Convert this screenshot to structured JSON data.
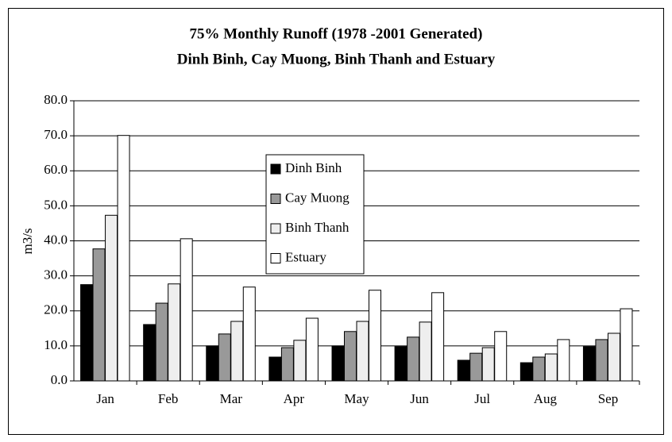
{
  "chart_data": {
    "type": "bar",
    "title": "75% Monthly Runoff (1978 -2001 Generated)",
    "subtitle": "Dinh Binh, Cay Muong, Binh Thanh and Estuary",
    "y_label": "m3/s",
    "categories": [
      "Jan",
      "Feb",
      "Mar",
      "Apr",
      "May",
      "Jun",
      "Jul",
      "Aug",
      "Sep"
    ],
    "series": [
      {
        "name": "Dinh Binh",
        "color": "#000000",
        "values": [
          27.5,
          16.1,
          10.0,
          6.8,
          10.0,
          9.8,
          5.9,
          5.2,
          9.8
        ]
      },
      {
        "name": "Cay Muong",
        "color": "#999999",
        "values": [
          37.7,
          22.2,
          13.4,
          9.5,
          14.1,
          12.5,
          7.9,
          6.8,
          11.8
        ]
      },
      {
        "name": "Binh Thanh",
        "color": "#eeeeee",
        "values": [
          47.3,
          27.7,
          17.0,
          11.6,
          17.0,
          16.8,
          9.5,
          7.7,
          13.6
        ]
      },
      {
        "name": "Estuary",
        "color": "#ffffff",
        "values": [
          70.1,
          40.6,
          26.8,
          17.9,
          25.9,
          25.2,
          14.1,
          11.8,
          20.6
        ]
      }
    ],
    "ylim": [
      0,
      80
    ],
    "yticks": [
      {
        "value": 0,
        "label": "0.0"
      },
      {
        "value": 10,
        "label": "10.0"
      },
      {
        "value": 20,
        "label": "20.0"
      },
      {
        "value": 30,
        "label": "30.0"
      },
      {
        "value": 40,
        "label": "40.0"
      },
      {
        "value": 50,
        "label": "50.0"
      },
      {
        "value": 60,
        "label": "60.0"
      },
      {
        "value": 70,
        "label": "70.0"
      },
      {
        "value": 80,
        "label": "80.0"
      }
    ],
    "grid": true
  }
}
